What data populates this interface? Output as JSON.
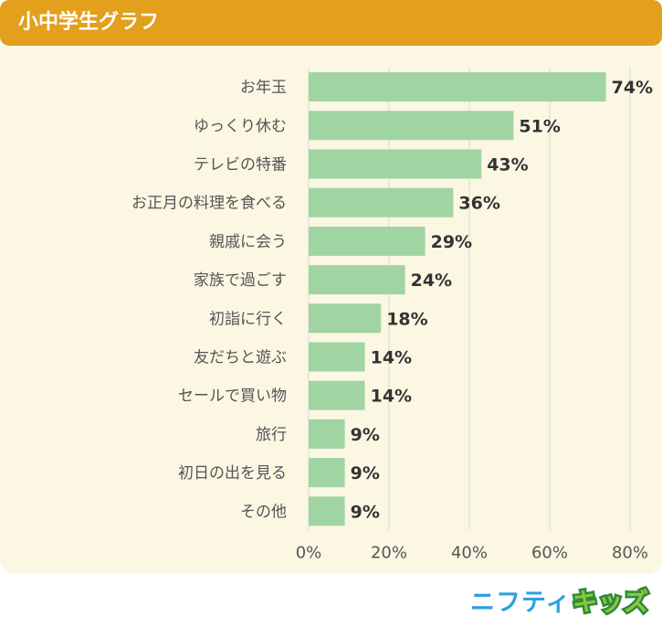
{
  "header": {
    "title": "小中学生グラフ"
  },
  "chart_data": {
    "type": "bar",
    "orientation": "horizontal",
    "title": "小中学生グラフ",
    "categories": [
      "お年玉",
      "ゆっくり休む",
      "テレビの特番",
      "お正月の料理を食べる",
      "親戚に会う",
      "家族で過ごす",
      "初詣に行く",
      "友だちと遊ぶ",
      "セールで買い物",
      "旅行",
      "初日の出を見る",
      "その他"
    ],
    "values": [
      74,
      51,
      43,
      36,
      29,
      24,
      18,
      14,
      14,
      9,
      9,
      9
    ],
    "value_labels": [
      "74%",
      "51%",
      "43%",
      "36%",
      "29%",
      "24%",
      "18%",
      "14%",
      "14%",
      "9%",
      "9%",
      "9%"
    ],
    "xlim": [
      0,
      80
    ],
    "x_ticks": [
      0,
      20,
      40,
      60,
      80
    ],
    "x_tick_labels": [
      "0%",
      "20%",
      "40%",
      "60%",
      "80%"
    ],
    "grid": true,
    "xlabel": "",
    "ylabel": ""
  },
  "colors": {
    "header": "#e2a01c",
    "panel": "#fbf7e3",
    "bar": "#a1d4a3",
    "grid": "#d6dcd0"
  },
  "logo": {
    "part1": "ニフティ",
    "part2": "キッズ"
  }
}
